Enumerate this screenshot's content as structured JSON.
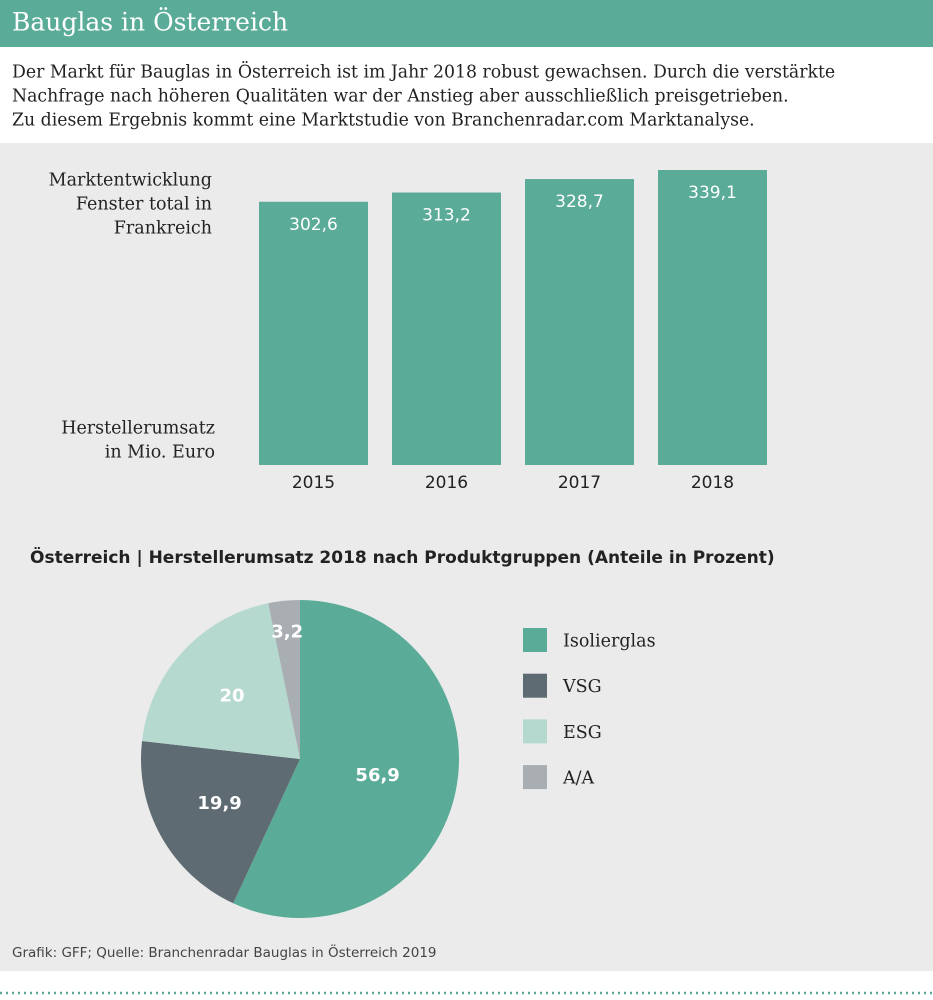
{
  "header": {
    "title": "Bauglas in Österreich"
  },
  "intro": [
    "Der Markt für Bauglas in Österreich ist im Jahr 2018 robust gewachsen. Durch die verstärkte",
    "Nachfrage nach höheren Qualitäten war der Anstieg aber ausschließlich preisgetrieben.",
    "Zu diesem Ergebnis kommt eine Marktstudie von Branchenradar.com Marktanalyse."
  ],
  "chart_data": [
    {
      "type": "bar",
      "annotation": [
        "Marktentwicklung",
        "Fenster total in",
        "Frankreich"
      ],
      "ylabel": [
        "Herstellerumsatz",
        "in Mio. Euro"
      ],
      "categories": [
        "2015",
        "2016",
        "2017",
        "2018"
      ],
      "values": [
        302.6,
        313.2,
        328.7,
        339.1
      ],
      "value_labels": [
        "302,6",
        "313,2",
        "328,7",
        "339,1"
      ],
      "color": "#5aab97"
    },
    {
      "type": "pie",
      "title": "Österreich | Herstellerumsatz 2018 nach Produktgruppen (Anteile in Prozent)",
      "categories": [
        "Isolierglas",
        "VSG",
        "ESG",
        "A/A"
      ],
      "values": [
        56.9,
        19.9,
        20,
        3.2
      ],
      "value_labels": [
        "56,9",
        "19,9",
        "20",
        "3,2"
      ],
      "colors": [
        "#5aab97",
        "#5e6b72",
        "#b5d9cf",
        "#a9aeb3"
      ]
    }
  ],
  "footer": "Grafik: GFF; Quelle: Branchenradar Bauglas in Österreich 2019"
}
